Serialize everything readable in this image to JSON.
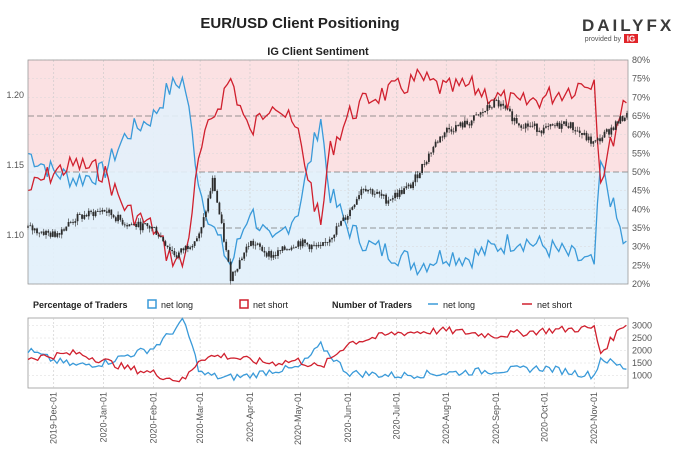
{
  "header": {
    "title": "EUR/USD Client Positioning",
    "subtitle": "IG Client Sentiment"
  },
  "logo": {
    "wordmark": "DAILYFX",
    "tagline": "provided by",
    "brand": "IG"
  },
  "colors": {
    "net_long": "#3a9ad9",
    "net_short": "#d0202e",
    "long_fill": "#e3f1fb",
    "short_fill": "#fbe1e3",
    "candle": "#2b2b2b"
  },
  "legend": {
    "pct_label": "Percentage of Traders",
    "num_label": "Number of Traders",
    "net_long": "net long",
    "net_short": "net short"
  },
  "chart_data": [
    {
      "type": "line",
      "panel": "price",
      "title": "IG Client Sentiment",
      "left_axis": {
        "ticks": [
          "1.20",
          "1.15",
          "1.10"
        ],
        "ylim": [
          1.065,
          1.225
        ]
      },
      "right_axis": {
        "ticks": [
          "80%",
          "75%",
          "70%",
          "65%",
          "60%",
          "55%",
          "50%",
          "45%",
          "40%",
          "35%",
          "30%",
          "25%",
          "20%"
        ],
        "ylim": [
          20,
          80
        ]
      },
      "x_ticks": [
        "2019-Dec-01",
        "2020-Jan-01",
        "2020-Feb-01",
        "2020-Mar-01",
        "2020-Apr-01",
        "2020-May-01",
        "2020-Jun-01",
        "2020-Jul-01",
        "2020-Aug-01",
        "2020-Sep-01",
        "2020-Oct-01",
        "2020-Nov-01"
      ],
      "series": [
        {
          "name": "EUR/USD",
          "x": [
            "2019-Nov-15",
            "2019-Dec-01",
            "2019-Dec-15",
            "2020-Jan-01",
            "2020-Jan-15",
            "2020-Feb-01",
            "2020-Feb-15",
            "2020-Mar-01",
            "2020-Mar-09",
            "2020-Mar-20",
            "2020-Apr-01",
            "2020-Apr-15",
            "2020-May-01",
            "2020-May-15",
            "2020-Jun-01",
            "2020-Jun-10",
            "2020-Jun-25",
            "2020-Jul-10",
            "2020-Jul-25",
            "2020-Aug-01",
            "2020-Aug-15",
            "2020-Sep-01",
            "2020-Sep-15",
            "2020-Oct-01",
            "2020-Oct-15",
            "2020-Nov-01",
            "2020-Nov-20"
          ],
          "values": [
            1.105,
            1.1,
            1.112,
            1.118,
            1.108,
            1.105,
            1.085,
            1.1,
            1.14,
            1.07,
            1.095,
            1.085,
            1.095,
            1.09,
            1.115,
            1.135,
            1.125,
            1.135,
            1.165,
            1.175,
            1.18,
            1.195,
            1.18,
            1.175,
            1.18,
            1.165,
            1.185
          ]
        },
        {
          "name": "net long %",
          "x": [
            "2019-Nov-15",
            "2019-Dec-01",
            "2019-Dec-15",
            "2020-Jan-01",
            "2020-Jan-15",
            "2020-Feb-01",
            "2020-Feb-10",
            "2020-Feb-20",
            "2020-Mar-01",
            "2020-Mar-09",
            "2020-Mar-20",
            "2020-Apr-01",
            "2020-Apr-15",
            "2020-May-01",
            "2020-May-15",
            "2020-May-20",
            "2020-Jun-01",
            "2020-Jun-15",
            "2020-Jul-01",
            "2020-Jul-15",
            "2020-Aug-01",
            "2020-Aug-15",
            "2020-Sep-01",
            "2020-Sep-15",
            "2020-Oct-01",
            "2020-Oct-15",
            "2020-Nov-01",
            "2020-Nov-05",
            "2020-Nov-20"
          ],
          "values": [
            55,
            50,
            48,
            50,
            60,
            65,
            72,
            75,
            45,
            35,
            25,
            40,
            30,
            40,
            65,
            45,
            35,
            30,
            28,
            25,
            28,
            27,
            30,
            32,
            30,
            28,
            25,
            52,
            30
          ]
        },
        {
          "name": "net short %",
          "x": [
            "2019-Nov-15",
            "2019-Dec-01",
            "2019-Dec-15",
            "2020-Jan-01",
            "2020-Jan-15",
            "2020-Feb-01",
            "2020-Feb-10",
            "2020-Feb-20",
            "2020-Mar-01",
            "2020-Mar-09",
            "2020-Mar-20",
            "2020-Apr-01",
            "2020-Apr-15",
            "2020-May-01",
            "2020-May-15",
            "2020-May-20",
            "2020-Jun-01",
            "2020-Jun-15",
            "2020-Jul-01",
            "2020-Jul-15",
            "2020-Aug-01",
            "2020-Aug-15",
            "2020-Sep-01",
            "2020-Sep-15",
            "2020-Oct-01",
            "2020-Oct-15",
            "2020-Nov-01",
            "2020-Nov-05",
            "2020-Nov-20"
          ],
          "values": [
            45,
            50,
            52,
            50,
            40,
            35,
            28,
            25,
            55,
            65,
            75,
            60,
            70,
            60,
            35,
            55,
            65,
            70,
            72,
            75,
            72,
            73,
            70,
            68,
            70,
            72,
            75,
            48,
            70
          ]
        }
      ]
    },
    {
      "type": "line",
      "panel": "traders",
      "right_axis": {
        "ticks": [
          "3000",
          "2500",
          "2000",
          "1500",
          "1000"
        ],
        "ylim": [
          500,
          3300
        ]
      },
      "series": [
        {
          "name": "net long",
          "x": [
            "2019-Nov-15",
            "2019-Dec-01",
            "2019-Dec-15",
            "2020-Jan-01",
            "2020-Jan-15",
            "2020-Feb-01",
            "2020-Feb-10",
            "2020-Feb-20",
            "2020-Mar-01",
            "2020-Mar-15",
            "2020-Apr-01",
            "2020-Apr-15",
            "2020-May-01",
            "2020-May-15",
            "2020-Jun-01",
            "2020-Jul-01",
            "2020-Aug-01",
            "2020-Sep-01",
            "2020-Oct-01",
            "2020-Nov-01",
            "2020-Nov-05",
            "2020-Nov-20"
          ],
          "values": [
            2000,
            1600,
            1400,
            1500,
            1800,
            2100,
            2600,
            3200,
            1100,
            900,
            1000,
            1200,
            1300,
            2200,
            1100,
            1000,
            1100,
            1200,
            1300,
            1000,
            1700,
            1300
          ]
        },
        {
          "name": "net short",
          "x": [
            "2019-Nov-15",
            "2019-Dec-01",
            "2019-Dec-15",
            "2020-Jan-01",
            "2020-Jan-15",
            "2020-Feb-01",
            "2020-Feb-10",
            "2020-Feb-20",
            "2020-Mar-01",
            "2020-Mar-15",
            "2020-Apr-01",
            "2020-Apr-15",
            "2020-May-01",
            "2020-May-15",
            "2020-Jun-01",
            "2020-Jul-01",
            "2020-Aug-01",
            "2020-Sep-01",
            "2020-Oct-01",
            "2020-Nov-01",
            "2020-Nov-05",
            "2020-Nov-20"
          ],
          "values": [
            1700,
            1800,
            1900,
            1600,
            1300,
            1100,
            900,
            800,
            1700,
            1800,
            1600,
            1500,
            1600,
            1300,
            2300,
            2700,
            2800,
            2600,
            2800,
            2900,
            1900,
            3100
          ]
        }
      ]
    }
  ]
}
